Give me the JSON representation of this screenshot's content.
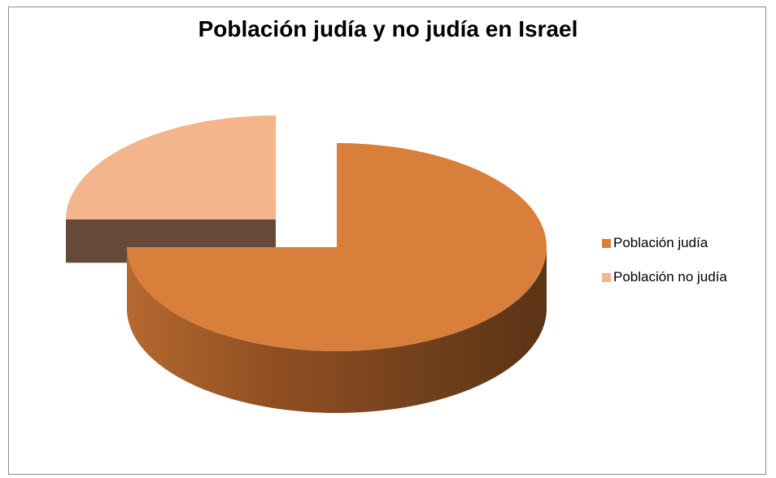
{
  "chart_data": {
    "type": "pie",
    "title": "Población judía y no judía en Israel",
    "categories": [
      "Población judía",
      "Población no judía"
    ],
    "values": [
      75,
      25
    ],
    "colors": [
      "#d97f3c",
      "#f4b48c"
    ],
    "side_colors": [
      "#8a4a1e",
      "#654a3a"
    ],
    "exploded": [
      "Población no judía"
    ],
    "style": "3d",
    "legend": "right"
  }
}
